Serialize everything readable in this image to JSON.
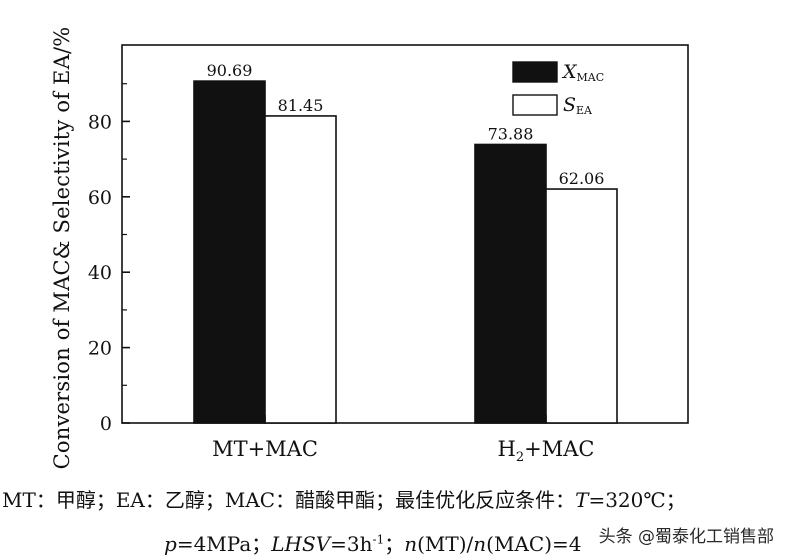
{
  "chart_data": {
    "type": "bar",
    "categories": [
      "MT+MAC",
      "H₂+MAC"
    ],
    "category_parts": [
      {
        "main": "MT+MAC",
        "sub": ""
      },
      {
        "main": "H",
        "sub": "2",
        "rest": "+MAC"
      }
    ],
    "series": [
      {
        "name": "X_MAC",
        "legend_main": "X",
        "legend_sub": "MAC",
        "color": "#111111",
        "values": [
          90.69,
          73.88
        ]
      },
      {
        "name": "S_EA",
        "legend_main": "S",
        "legend_sub": "EA",
        "color": "#ffffff",
        "values": [
          81.45,
          62.06
        ]
      }
    ],
    "data_labels": [
      [
        "90.69",
        "73.88"
      ],
      [
        "81.45",
        "62.06"
      ]
    ],
    "ylabel": "Conversion of MAC& Selectivity of EA/%",
    "xlabel": "",
    "ylim": [
      0,
      100
    ],
    "yticks": [
      0,
      20,
      40,
      60,
      80
    ],
    "legend_position": "top-right",
    "grid": false
  },
  "caption": {
    "line1_a": "MT：甲醇；EA：乙醇；MAC：醋酸甲酯；最佳优化反应条件：",
    "line1_T": "T",
    "line1_b": "=320℃；",
    "line2_p": "p",
    "line2_a": "=4MPa；",
    "line2_lhsv": "LHSV",
    "line2_b": "=3h",
    "line2_sup": "-1",
    "line2_c": "；",
    "line2_n1": "n",
    "line2_d": "(MT)/",
    "line2_n2": "n",
    "line2_e": "(MAC)=4"
  },
  "watermark": "头条 @蜀泰化工销售部"
}
